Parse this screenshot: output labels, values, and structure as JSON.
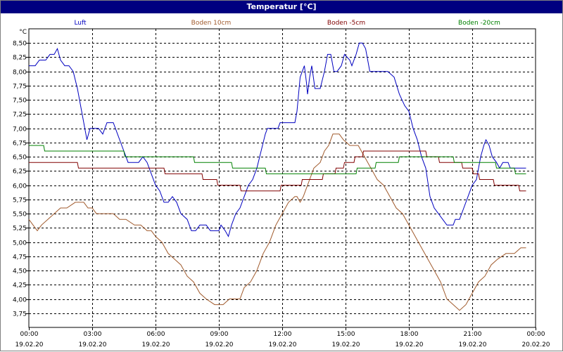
{
  "window": {
    "title": "Temperatur [°C]"
  },
  "chart_data": {
    "type": "line",
    "title": "Temperatur [°C]",
    "ylabel": "°C",
    "ylim": [
      3.5,
      8.75
    ],
    "y_ticks": [
      "8,50",
      "8,25",
      "8,00",
      "7,75",
      "7,50",
      "7,25",
      "7,00",
      "6,75",
      "6,50",
      "6,25",
      "6,00",
      "5,75",
      "5,50",
      "5,25",
      "5,00",
      "4,75",
      "4,50",
      "4,25",
      "4,00",
      "3,75"
    ],
    "y_tick_values": [
      8.5,
      8.25,
      8.0,
      7.75,
      7.5,
      7.25,
      7.0,
      6.75,
      6.5,
      6.25,
      6.0,
      5.75,
      5.5,
      5.25,
      5.0,
      4.75,
      4.5,
      4.25,
      4.0,
      3.75
    ],
    "x_ticks": [
      {
        "hours": 0,
        "time": "00:00",
        "date": "19.02.20"
      },
      {
        "hours": 3,
        "time": "03:00",
        "date": "19.02.20"
      },
      {
        "hours": 6,
        "time": "06:00",
        "date": "19.02.20"
      },
      {
        "hours": 9,
        "time": "09:00",
        "date": "19.02.20"
      },
      {
        "hours": 12,
        "time": "12:00",
        "date": "19.02.20"
      },
      {
        "hours": 15,
        "time": "15:00",
        "date": "19.02.20"
      },
      {
        "hours": 18,
        "time": "18:00",
        "date": "19.02.20"
      },
      {
        "hours": 21,
        "time": "21:00",
        "date": "19.02.20"
      },
      {
        "hours": 24,
        "time": "00:00",
        "date": "20.02.20"
      }
    ],
    "xlim": [
      0,
      24
    ],
    "grid": true,
    "legend_position": "top",
    "series": [
      {
        "name": "Luft",
        "color": "#0000c0",
        "points": [
          [
            0,
            8.1
          ],
          [
            0.3,
            8.1
          ],
          [
            0.5,
            8.2
          ],
          [
            0.8,
            8.2
          ],
          [
            1.0,
            8.3
          ],
          [
            1.2,
            8.3
          ],
          [
            1.35,
            8.4
          ],
          [
            1.5,
            8.2
          ],
          [
            1.7,
            8.1
          ],
          [
            1.9,
            8.1
          ],
          [
            2.1,
            8.0
          ],
          [
            2.3,
            7.7
          ],
          [
            2.5,
            7.3
          ],
          [
            2.7,
            6.9
          ],
          [
            2.75,
            6.8
          ],
          [
            2.9,
            7.0
          ],
          [
            3.3,
            7.0
          ],
          [
            3.5,
            6.9
          ],
          [
            3.7,
            7.1
          ],
          [
            4.0,
            7.1
          ],
          [
            4.2,
            6.9
          ],
          [
            4.4,
            6.7
          ],
          [
            4.6,
            6.5
          ],
          [
            4.7,
            6.4
          ],
          [
            5.2,
            6.4
          ],
          [
            5.4,
            6.5
          ],
          [
            5.6,
            6.4
          ],
          [
            5.8,
            6.2
          ],
          [
            6.0,
            6.0
          ],
          [
            6.2,
            5.9
          ],
          [
            6.4,
            5.7
          ],
          [
            6.6,
            5.7
          ],
          [
            6.8,
            5.8
          ],
          [
            7.0,
            5.7
          ],
          [
            7.2,
            5.5
          ],
          [
            7.5,
            5.4
          ],
          [
            7.7,
            5.2
          ],
          [
            7.9,
            5.2
          ],
          [
            8.1,
            5.3
          ],
          [
            8.4,
            5.3
          ],
          [
            8.6,
            5.2
          ],
          [
            9.0,
            5.2
          ],
          [
            9.1,
            5.3
          ],
          [
            9.3,
            5.2
          ],
          [
            9.45,
            5.1
          ],
          [
            9.6,
            5.3
          ],
          [
            9.8,
            5.5
          ],
          [
            10.0,
            5.6
          ],
          [
            10.2,
            5.8
          ],
          [
            10.4,
            6.0
          ],
          [
            10.6,
            6.1
          ],
          [
            10.8,
            6.3
          ],
          [
            11.0,
            6.6
          ],
          [
            11.2,
            6.9
          ],
          [
            11.3,
            7.0
          ],
          [
            11.8,
            7.0
          ],
          [
            11.9,
            7.1
          ],
          [
            12.6,
            7.1
          ],
          [
            12.7,
            7.3
          ],
          [
            12.85,
            7.9
          ],
          [
            12.95,
            8.0
          ],
          [
            13.05,
            8.1
          ],
          [
            13.15,
            7.8
          ],
          [
            13.2,
            7.6
          ],
          [
            13.3,
            7.9
          ],
          [
            13.4,
            8.1
          ],
          [
            13.55,
            7.7
          ],
          [
            13.8,
            7.7
          ],
          [
            14.0,
            8.0
          ],
          [
            14.15,
            8.3
          ],
          [
            14.3,
            8.3
          ],
          [
            14.45,
            8.0
          ],
          [
            14.6,
            8.0
          ],
          [
            14.8,
            8.1
          ],
          [
            14.95,
            8.3
          ],
          [
            15.2,
            8.2
          ],
          [
            15.3,
            8.1
          ],
          [
            15.5,
            8.3
          ],
          [
            15.65,
            8.5
          ],
          [
            15.8,
            8.5
          ],
          [
            15.95,
            8.4
          ],
          [
            16.05,
            8.2
          ],
          [
            16.15,
            8.0
          ],
          [
            17.0,
            8.0
          ],
          [
            17.3,
            7.9
          ],
          [
            17.55,
            7.6
          ],
          [
            17.8,
            7.4
          ],
          [
            18.0,
            7.3
          ],
          [
            18.2,
            7.0
          ],
          [
            18.4,
            6.8
          ],
          [
            18.6,
            6.5
          ],
          [
            18.8,
            6.3
          ],
          [
            19.0,
            5.8
          ],
          [
            19.2,
            5.6
          ],
          [
            19.4,
            5.5
          ],
          [
            19.6,
            5.4
          ],
          [
            19.8,
            5.3
          ],
          [
            20.1,
            5.3
          ],
          [
            20.2,
            5.4
          ],
          [
            20.4,
            5.4
          ],
          [
            20.6,
            5.6
          ],
          [
            20.8,
            5.8
          ],
          [
            21.0,
            6.0
          ],
          [
            21.2,
            6.1
          ],
          [
            21.3,
            6.3
          ],
          [
            21.4,
            6.5
          ],
          [
            21.55,
            6.7
          ],
          [
            21.65,
            6.8
          ],
          [
            21.8,
            6.7
          ],
          [
            21.95,
            6.5
          ],
          [
            22.15,
            6.4
          ],
          [
            22.3,
            6.3
          ],
          [
            22.45,
            6.4
          ],
          [
            22.7,
            6.4
          ],
          [
            22.8,
            6.3
          ],
          [
            23.55,
            6.3
          ]
        ]
      },
      {
        "name": "Boden 10cm",
        "color": "#a05a2c",
        "points": [
          [
            0,
            5.4
          ],
          [
            0.2,
            5.3
          ],
          [
            0.4,
            5.2
          ],
          [
            0.6,
            5.3
          ],
          [
            0.9,
            5.4
          ],
          [
            1.2,
            5.5
          ],
          [
            1.5,
            5.6
          ],
          [
            1.8,
            5.6
          ],
          [
            2.2,
            5.7
          ],
          [
            2.6,
            5.7
          ],
          [
            2.8,
            5.6
          ],
          [
            3.0,
            5.6
          ],
          [
            3.2,
            5.5
          ],
          [
            3.5,
            5.5
          ],
          [
            4.0,
            5.5
          ],
          [
            4.3,
            5.4
          ],
          [
            4.6,
            5.4
          ],
          [
            5.0,
            5.3
          ],
          [
            5.3,
            5.3
          ],
          [
            5.6,
            5.2
          ],
          [
            5.8,
            5.2
          ],
          [
            6.0,
            5.1
          ],
          [
            6.3,
            5.0
          ],
          [
            6.6,
            4.8
          ],
          [
            6.9,
            4.7
          ],
          [
            7.2,
            4.6
          ],
          [
            7.5,
            4.4
          ],
          [
            7.8,
            4.3
          ],
          [
            8.1,
            4.1
          ],
          [
            8.4,
            4.0
          ],
          [
            8.8,
            3.9
          ],
          [
            9.2,
            3.9
          ],
          [
            9.5,
            4.0
          ],
          [
            9.8,
            4.0
          ],
          [
            10.0,
            4.0
          ],
          [
            10.2,
            4.2
          ],
          [
            10.5,
            4.3
          ],
          [
            10.8,
            4.5
          ],
          [
            11.1,
            4.8
          ],
          [
            11.4,
            5.0
          ],
          [
            11.7,
            5.3
          ],
          [
            12.0,
            5.5
          ],
          [
            12.3,
            5.7
          ],
          [
            12.6,
            5.8
          ],
          [
            12.7,
            5.8
          ],
          [
            12.85,
            5.7
          ],
          [
            13.0,
            5.8
          ],
          [
            13.2,
            6.0
          ],
          [
            13.5,
            6.3
          ],
          [
            13.8,
            6.4
          ],
          [
            14.0,
            6.6
          ],
          [
            14.2,
            6.7
          ],
          [
            14.4,
            6.9
          ],
          [
            14.7,
            6.9
          ],
          [
            14.9,
            6.8
          ],
          [
            15.2,
            6.7
          ],
          [
            15.6,
            6.7
          ],
          [
            15.9,
            6.5
          ],
          [
            16.2,
            6.3
          ],
          [
            16.5,
            6.1
          ],
          [
            16.8,
            6.0
          ],
          [
            17.1,
            5.8
          ],
          [
            17.4,
            5.6
          ],
          [
            17.7,
            5.5
          ],
          [
            18.0,
            5.3
          ],
          [
            18.3,
            5.1
          ],
          [
            18.6,
            4.9
          ],
          [
            18.9,
            4.7
          ],
          [
            19.2,
            4.5
          ],
          [
            19.5,
            4.3
          ],
          [
            19.8,
            4.0
          ],
          [
            20.1,
            3.9
          ],
          [
            20.4,
            3.8
          ],
          [
            20.7,
            3.9
          ],
          [
            21.0,
            4.1
          ],
          [
            21.3,
            4.3
          ],
          [
            21.6,
            4.4
          ],
          [
            21.9,
            4.6
          ],
          [
            22.2,
            4.7
          ],
          [
            22.6,
            4.8
          ],
          [
            23.0,
            4.8
          ],
          [
            23.3,
            4.9
          ],
          [
            23.55,
            4.9
          ]
        ]
      },
      {
        "name": "Boden -5cm",
        "color": "#800000",
        "points": [
          [
            0,
            6.4
          ],
          [
            2.3,
            6.4
          ],
          [
            2.35,
            6.3
          ],
          [
            6.4,
            6.3
          ],
          [
            6.45,
            6.2
          ],
          [
            8.2,
            6.2
          ],
          [
            8.25,
            6.1
          ],
          [
            8.9,
            6.1
          ],
          [
            8.95,
            6.0
          ],
          [
            10.0,
            6.0
          ],
          [
            10.05,
            5.9
          ],
          [
            11.9,
            5.9
          ],
          [
            11.95,
            6.0
          ],
          [
            12.9,
            6.0
          ],
          [
            12.95,
            6.1
          ],
          [
            13.9,
            6.1
          ],
          [
            13.95,
            6.2
          ],
          [
            14.5,
            6.2
          ],
          [
            14.55,
            6.3
          ],
          [
            14.9,
            6.3
          ],
          [
            14.95,
            6.4
          ],
          [
            15.4,
            6.4
          ],
          [
            15.45,
            6.5
          ],
          [
            15.8,
            6.5
          ],
          [
            15.85,
            6.6
          ],
          [
            18.8,
            6.6
          ],
          [
            18.85,
            6.5
          ],
          [
            19.4,
            6.5
          ],
          [
            19.45,
            6.4
          ],
          [
            20.5,
            6.4
          ],
          [
            20.55,
            6.3
          ],
          [
            21.0,
            6.3
          ],
          [
            21.05,
            6.2
          ],
          [
            21.3,
            6.2
          ],
          [
            21.35,
            6.1
          ],
          [
            22.0,
            6.1
          ],
          [
            22.05,
            6.0
          ],
          [
            23.2,
            6.0
          ],
          [
            23.25,
            5.9
          ],
          [
            23.55,
            5.9
          ]
        ]
      },
      {
        "name": "Boden -20cm",
        "color": "#008000",
        "points": [
          [
            0,
            6.7
          ],
          [
            0.7,
            6.7
          ],
          [
            0.75,
            6.6
          ],
          [
            4.5,
            6.6
          ],
          [
            4.55,
            6.5
          ],
          [
            7.8,
            6.5
          ],
          [
            7.85,
            6.4
          ],
          [
            9.6,
            6.4
          ],
          [
            9.65,
            6.3
          ],
          [
            11.2,
            6.3
          ],
          [
            11.25,
            6.2
          ],
          [
            15.5,
            6.2
          ],
          [
            15.55,
            6.3
          ],
          [
            16.4,
            6.3
          ],
          [
            16.45,
            6.4
          ],
          [
            17.5,
            6.4
          ],
          [
            17.55,
            6.5
          ],
          [
            20.1,
            6.5
          ],
          [
            20.15,
            6.4
          ],
          [
            22.1,
            6.4
          ],
          [
            22.15,
            6.3
          ],
          [
            23.0,
            6.3
          ],
          [
            23.05,
            6.2
          ],
          [
            23.55,
            6.2
          ]
        ]
      }
    ]
  }
}
